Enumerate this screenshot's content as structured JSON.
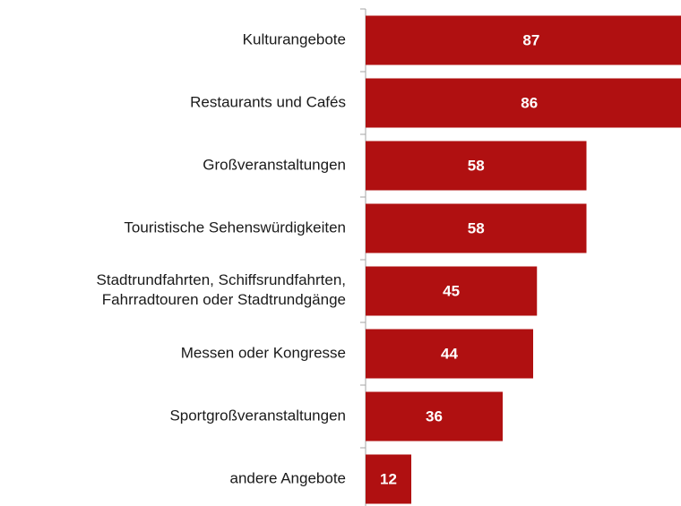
{
  "chart_data": {
    "type": "bar",
    "orientation": "horizontal",
    "categories": [
      "Kulturangebote",
      "Restaurants und Cafés",
      "Großveranstaltungen",
      "Touristische Sehenswürdigkeiten",
      "Stadtrundfahrten, Schiffsrundfahrten,\nFahrradtouren oder Stadtrundgänge",
      "Messen oder Kongresse",
      "Sportgroßveranstaltungen",
      "andere Angebote"
    ],
    "values": [
      87,
      86,
      58,
      58,
      45,
      44,
      36,
      12
    ],
    "color": "#b01011"
  }
}
